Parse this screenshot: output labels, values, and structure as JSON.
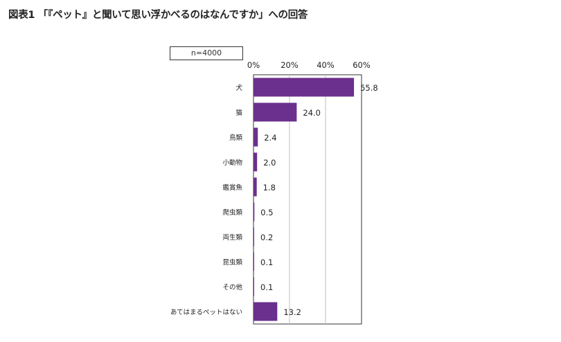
{
  "figure": {
    "title": "図表1 「『ペット』と聞いて思い浮かべるのはなんですか」への回答",
    "sample_note": "n=4000"
  },
  "colors": {
    "bar": "#6b2f8d",
    "grid": "#bfbfbf",
    "axis": "#333333"
  },
  "chart_data": {
    "type": "bar",
    "orientation": "horizontal",
    "categories": [
      "犬",
      "猫",
      "鳥類",
      "小動物",
      "鑑賞魚",
      "爬虫類",
      "両生類",
      "昆虫類",
      "その他",
      "あてはまるペットはない"
    ],
    "values": [
      55.8,
      24.0,
      2.4,
      2.0,
      1.8,
      0.5,
      0.2,
      0.1,
      0.1,
      13.2
    ],
    "value_labels": [
      "55.8",
      "24.0",
      "2.4",
      "2.0",
      "1.8",
      "0.5",
      "0.2",
      "0.1",
      "0.1",
      "13.2"
    ],
    "xlim": [
      0,
      60
    ],
    "ticks": [
      0,
      20,
      40,
      60
    ],
    "tick_labels": [
      "0%",
      "20%",
      "40%",
      "60%"
    ],
    "axis_position": "top",
    "grid": true,
    "legend": false
  }
}
